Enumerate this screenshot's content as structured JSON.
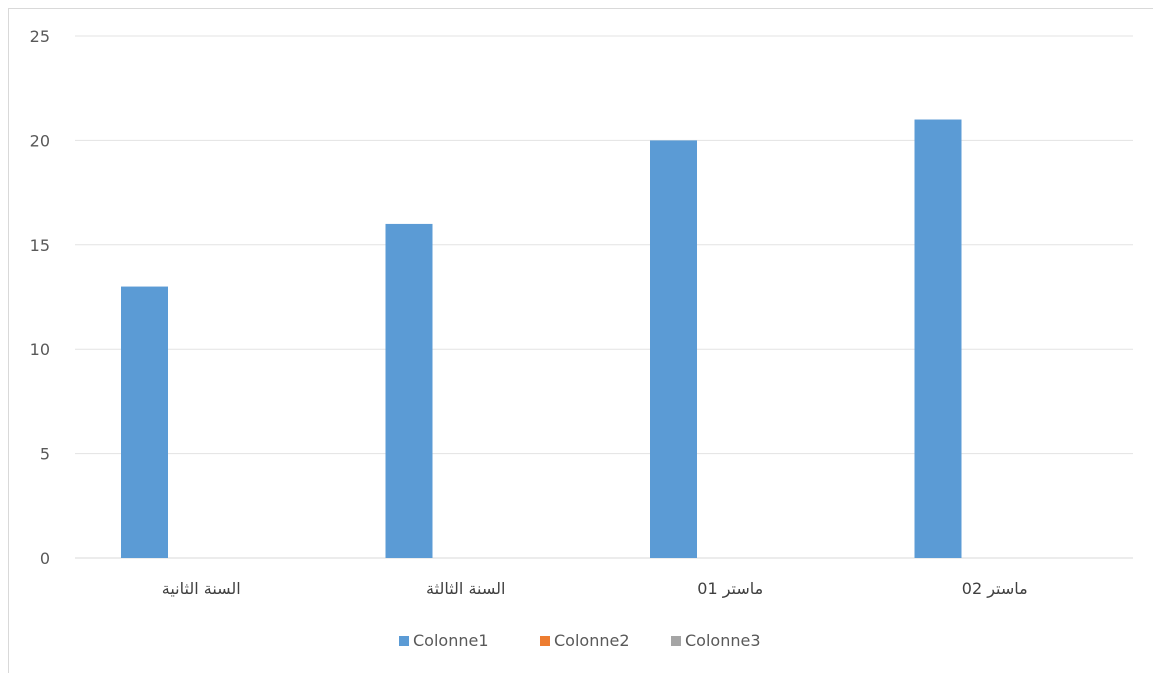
{
  "chart_data": {
    "type": "bar",
    "categories": [
      "السنة الثانية",
      "السنة الثالثة",
      "ماستر 01",
      "ماستر 02"
    ],
    "series": [
      {
        "name": "Colonne1",
        "values": [
          13,
          16,
          20,
          21
        ],
        "color": "#5b9bd5"
      },
      {
        "name": "Colonne2",
        "values": [
          0,
          0,
          0,
          0
        ],
        "color": "#ed7d31"
      },
      {
        "name": "Colonne3",
        "values": [
          0,
          0,
          0,
          0
        ],
        "color": "#a5a5a5"
      }
    ],
    "yticks": [
      "0",
      "5",
      "10",
      "15",
      "20",
      "25"
    ],
    "ylim": [
      0,
      25
    ],
    "grid": true,
    "legend": "bottom"
  }
}
